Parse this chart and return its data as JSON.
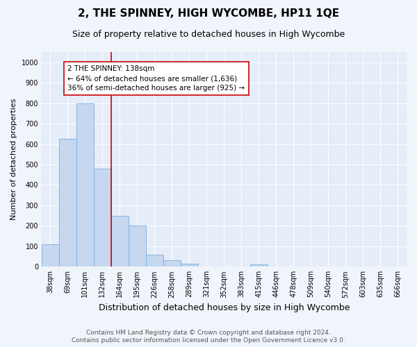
{
  "title": "2, THE SPINNEY, HIGH WYCOMBE, HP11 1QE",
  "subtitle": "Size of property relative to detached houses in High Wycombe",
  "xlabel": "Distribution of detached houses by size in High Wycombe",
  "ylabel": "Number of detached properties",
  "categories": [
    "38sqm",
    "69sqm",
    "101sqm",
    "132sqm",
    "164sqm",
    "195sqm",
    "226sqm",
    "258sqm",
    "289sqm",
    "321sqm",
    "352sqm",
    "383sqm",
    "415sqm",
    "446sqm",
    "478sqm",
    "509sqm",
    "540sqm",
    "572sqm",
    "603sqm",
    "635sqm",
    "666sqm"
  ],
  "values": [
    110,
    625,
    800,
    480,
    250,
    200,
    60,
    30,
    15,
    0,
    0,
    0,
    10,
    0,
    0,
    0,
    0,
    0,
    0,
    0,
    0
  ],
  "bar_color": "#c5d8f0",
  "bar_edge_color": "#7aaedc",
  "vline_x": 3.5,
  "vline_color": "#cc0000",
  "annotation_text": "2 THE SPINNEY: 138sqm\n← 64% of detached houses are smaller (1,636)\n36% of semi-detached houses are larger (925) →",
  "annotation_box_facecolor": "#ffffff",
  "annotation_box_edgecolor": "#cc0000",
  "ylim": [
    0,
    1050
  ],
  "yticks": [
    0,
    100,
    200,
    300,
    400,
    500,
    600,
    700,
    800,
    900,
    1000
  ],
  "footer_line1": "Contains HM Land Registry data © Crown copyright and database right 2024.",
  "footer_line2": "Contains public sector information licensed under the Open Government Licence v3.0.",
  "bg_color": "#f0f4fb",
  "plot_bg_color": "#e4edf8",
  "grid_color": "#ffffff",
  "title_fontsize": 11,
  "subtitle_fontsize": 9,
  "xlabel_fontsize": 9,
  "ylabel_fontsize": 8,
  "tick_fontsize": 7,
  "annotation_fontsize": 7.5,
  "footer_fontsize": 6.5
}
